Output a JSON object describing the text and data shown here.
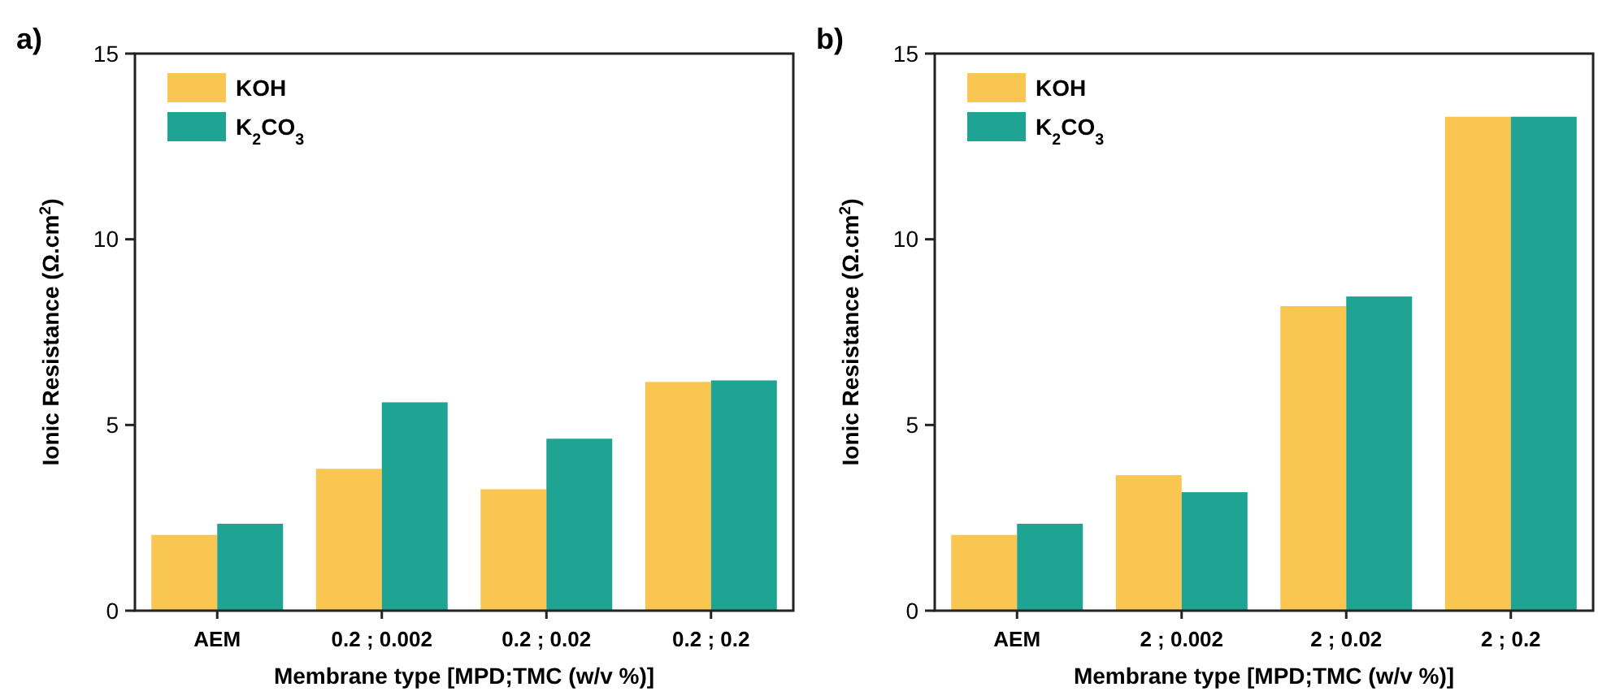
{
  "chart_data": [
    {
      "type": "bar",
      "title": "a)",
      "xlabel": "Membrane type [MPD;TMC (w/v %)]",
      "ylabel": "Ionic Resistance  (Ω.cm$^{2}$)",
      "categories": [
        "AEM",
        "0.2 ; 0.002",
        "0.2 ; 0.02",
        "0.2 ; 0.2"
      ],
      "series": [
        {
          "name": "KOH",
          "color": "#f9c652",
          "values": [
            2.04,
            3.82,
            3.27,
            6.16
          ]
        },
        {
          "name": "K$_{2}$CO$_{3}$",
          "color": "#1fa392",
          "values": [
            2.34,
            5.61,
            4.63,
            6.2
          ]
        }
      ],
      "ylim": [
        0,
        15
      ],
      "yticks": [
        0,
        5,
        10,
        15
      ],
      "grid": false,
      "legend": "top left"
    },
    {
      "type": "bar",
      "title": "b)",
      "xlabel": "Membrane type [MPD;TMC (w/v %)]",
      "ylabel": "Ionic Resistance  (Ω.cm$^{2}$)",
      "categories": [
        "AEM",
        "2 ; 0.002",
        "2 ; 0.02",
        "2 ; 0.2"
      ],
      "series": [
        {
          "name": "KOH",
          "color": "#f9c652",
          "values": [
            2.04,
            3.65,
            8.2,
            13.3
          ]
        },
        {
          "name": "K$_{2}$CO$_{3}$",
          "color": "#1fa392",
          "values": [
            2.34,
            3.19,
            8.46,
            13.3
          ]
        }
      ],
      "ylim": [
        0,
        15
      ],
      "yticks": [
        0,
        5,
        10,
        15
      ],
      "grid": false,
      "legend": "top left"
    }
  ]
}
